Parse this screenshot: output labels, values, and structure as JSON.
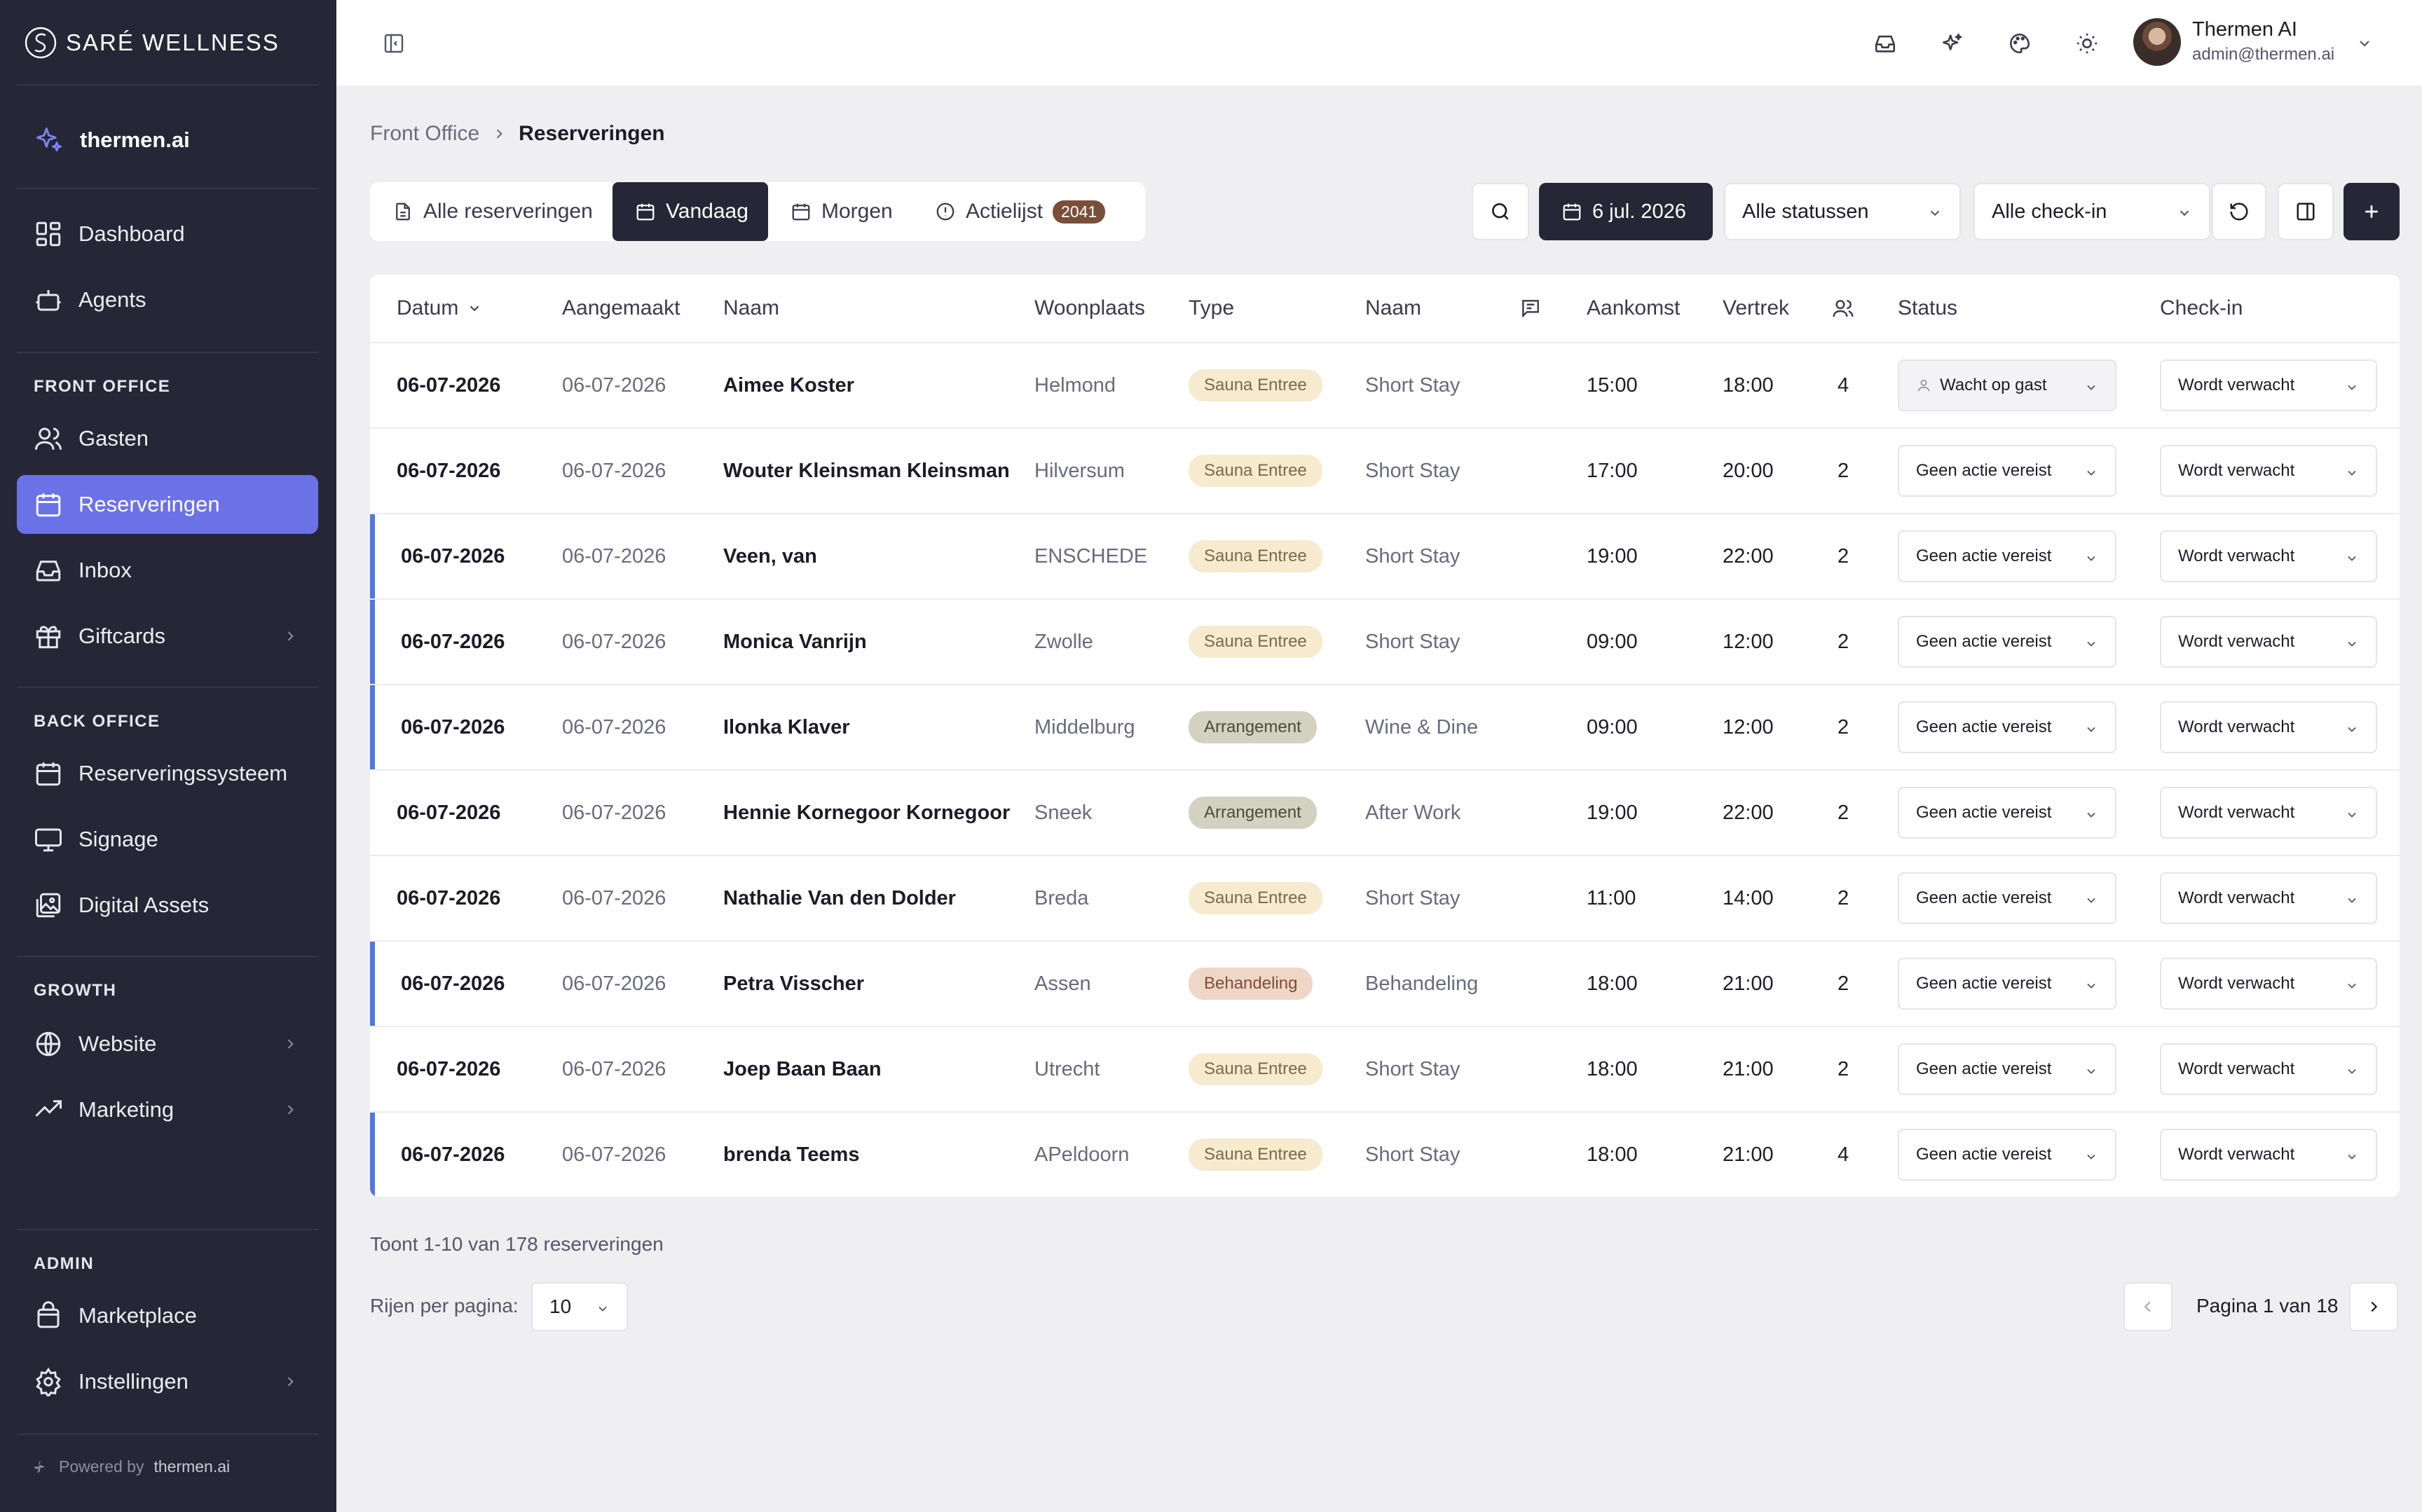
{
  "brand": {
    "name": "SARÉ WELLNESS"
  },
  "sidebar": {
    "workspace": "thermen.ai",
    "items_main": [
      {
        "label": "Dashboard",
        "icon": "dashboard-icon"
      },
      {
        "label": "Agents",
        "icon": "bot-icon"
      }
    ],
    "front_office": {
      "title": "FRONT OFFICE",
      "items": [
        {
          "label": "Gasten",
          "icon": "users-icon"
        },
        {
          "label": "Reserveringen",
          "icon": "calendar-icon",
          "active": true
        },
        {
          "label": "Inbox",
          "icon": "inbox-icon"
        },
        {
          "label": "Giftcards",
          "icon": "gift-icon",
          "expandable": true
        }
      ]
    },
    "back_office": {
      "title": "BACK OFFICE",
      "items": [
        {
          "label": "Reserveringssysteem",
          "icon": "calendar-icon"
        },
        {
          "label": "Signage",
          "icon": "monitor-icon"
        },
        {
          "label": "Digital Assets",
          "icon": "images-icon"
        }
      ]
    },
    "growth": {
      "title": "GROWTH",
      "items": [
        {
          "label": "Website",
          "icon": "globe-icon",
          "expandable": true
        },
        {
          "label": "Marketing",
          "icon": "trending-up-icon",
          "expandable": true
        }
      ]
    },
    "admin": {
      "title": "ADMIN",
      "items": [
        {
          "label": "Marketplace",
          "icon": "shopping-bag-icon"
        },
        {
          "label": "Instellingen",
          "icon": "gear-icon",
          "expandable": true
        }
      ]
    },
    "powered_by_prefix": "Powered by",
    "powered_by_name": "thermen.ai"
  },
  "topbar": {
    "user_name": "Thermen AI",
    "user_email": "admin@thermen.ai"
  },
  "breadcrumb": {
    "parent": "Front Office",
    "current": "Reserveringen"
  },
  "tabs": [
    {
      "label": "Alle reserveringen",
      "icon": "file-icon"
    },
    {
      "label": "Vandaag",
      "icon": "calendar-icon",
      "active": true
    },
    {
      "label": "Morgen",
      "icon": "calendar-icon"
    },
    {
      "label": "Actielijst",
      "icon": "alert-circle-icon",
      "badge": "2041"
    }
  ],
  "toolbar": {
    "date": "6 jul. 2026",
    "status_filter": "Alle statussen",
    "checkin_filter": "Alle check-in"
  },
  "table": {
    "headers": {
      "datum": "Datum",
      "aangemaakt": "Aangemaakt",
      "naam": "Naam",
      "woonplaats": "Woonplaats",
      "type": "Type",
      "naam2": "Naam",
      "aankomst": "Aankomst",
      "vertrek": "Vertrek",
      "status": "Status",
      "checkin": "Check-in"
    },
    "rows": [
      {
        "datum": "06-07-2026",
        "aangemaakt": "06-07-2026",
        "naam": "Aimee Koster",
        "woonplaats": "Helmond",
        "type": "Sauna Entree",
        "arrangement": "Short Stay",
        "aankomst": "15:00",
        "vertrek": "18:00",
        "personen": "4",
        "status": "Wacht op gast",
        "checkin": "Wordt verwacht",
        "flag": false
      },
      {
        "datum": "06-07-2026",
        "aangemaakt": "06-07-2026",
        "naam": "Wouter Kleinsman Kleinsman",
        "woonplaats": "Hilversum",
        "type": "Sauna Entree",
        "arrangement": "Short Stay",
        "aankomst": "17:00",
        "vertrek": "20:00",
        "personen": "2",
        "status": "Geen actie vereist",
        "checkin": "Wordt verwacht",
        "flag": false
      },
      {
        "datum": "06-07-2026",
        "aangemaakt": "06-07-2026",
        "naam": "Veen, van",
        "woonplaats": "ENSCHEDE",
        "type": "Sauna Entree",
        "arrangement": "Short Stay",
        "aankomst": "19:00",
        "vertrek": "22:00",
        "personen": "2",
        "status": "Geen actie vereist",
        "checkin": "Wordt verwacht",
        "flag": true
      },
      {
        "datum": "06-07-2026",
        "aangemaakt": "06-07-2026",
        "naam": "Monica Vanrijn",
        "woonplaats": "Zwolle",
        "type": "Sauna Entree",
        "arrangement": "Short Stay",
        "aankomst": "09:00",
        "vertrek": "12:00",
        "personen": "2",
        "status": "Geen actie vereist",
        "checkin": "Wordt verwacht",
        "flag": true
      },
      {
        "datum": "06-07-2026",
        "aangemaakt": "06-07-2026",
        "naam": "Ilonka Klaver",
        "woonplaats": "Middelburg",
        "type": "Arrangement",
        "arrangement": "Wine & Dine",
        "aankomst": "09:00",
        "vertrek": "12:00",
        "personen": "2",
        "status": "Geen actie vereist",
        "checkin": "Wordt verwacht",
        "flag": true
      },
      {
        "datum": "06-07-2026",
        "aangemaakt": "06-07-2026",
        "naam": "Hennie Kornegoor Kornegoor",
        "woonplaats": "Sneek",
        "type": "Arrangement",
        "arrangement": "After Work",
        "aankomst": "19:00",
        "vertrek": "22:00",
        "personen": "2",
        "status": "Geen actie vereist",
        "checkin": "Wordt verwacht",
        "flag": false
      },
      {
        "datum": "06-07-2026",
        "aangemaakt": "06-07-2026",
        "naam": "Nathalie Van den Dolder",
        "woonplaats": "Breda",
        "type": "Sauna Entree",
        "arrangement": "Short Stay",
        "aankomst": "11:00",
        "vertrek": "14:00",
        "personen": "2",
        "status": "Geen actie vereist",
        "checkin": "Wordt verwacht",
        "flag": false
      },
      {
        "datum": "06-07-2026",
        "aangemaakt": "06-07-2026",
        "naam": "Petra Visscher",
        "woonplaats": "Assen",
        "type": "Behandeling",
        "arrangement": "Behandeling",
        "aankomst": "18:00",
        "vertrek": "21:00",
        "personen": "2",
        "status": "Geen actie vereist",
        "checkin": "Wordt verwacht",
        "flag": true
      },
      {
        "datum": "06-07-2026",
        "aangemaakt": "06-07-2026",
        "naam": "Joep Baan Baan",
        "woonplaats": "Utrecht",
        "type": "Sauna Entree",
        "arrangement": "Short Stay",
        "aankomst": "18:00",
        "vertrek": "21:00",
        "personen": "2",
        "status": "Geen actie vereist",
        "checkin": "Wordt verwacht",
        "flag": false
      },
      {
        "datum": "06-07-2026",
        "aangemaakt": "06-07-2026",
        "naam": "brenda Teems",
        "woonplaats": "APeldoorn",
        "type": "Sauna Entree",
        "arrangement": "Short Stay",
        "aankomst": "18:00",
        "vertrek": "21:00",
        "personen": "4",
        "status": "Geen actie vereist",
        "checkin": "Wordt verwacht",
        "flag": true
      }
    ]
  },
  "type_colors": {
    "Sauna Entree": {
      "bg": "#f6ebcf",
      "fg": "#7a6a4a"
    },
    "Arrangement": {
      "bg": "#d3d1c1",
      "fg": "#4d4b3e"
    },
    "Behandeling": {
      "bg": "#f0d6c6",
      "fg": "#7a4f3a"
    }
  },
  "footer": {
    "showing": "Toont 1-10 van 178 reserveringen",
    "rows_label": "Rijen per pagina:",
    "rows_value": "10",
    "page_label": "Pagina 1 van 18"
  },
  "colors": {
    "sidebar_bg": "#262637",
    "accent": "#6b72e8",
    "flag": "#4e76e6",
    "dark_button": "#262637"
  }
}
